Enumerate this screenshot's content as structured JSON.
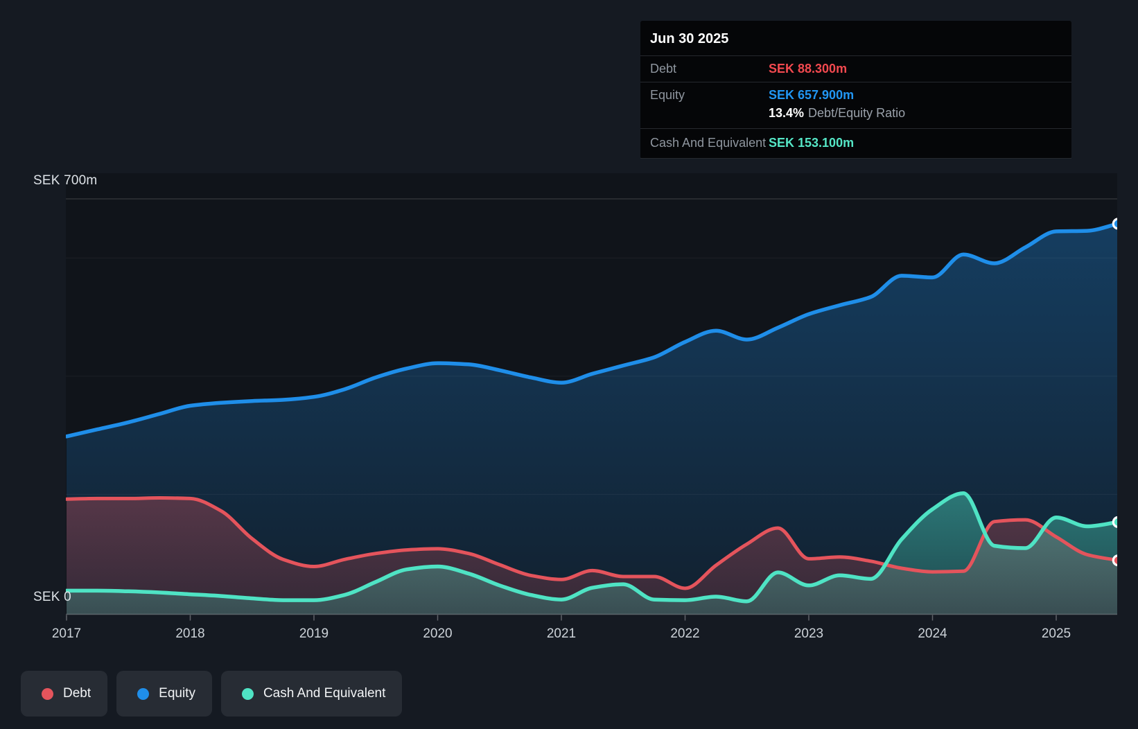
{
  "page": {
    "background": "#151a22"
  },
  "tooltip": {
    "date": "Jun 30 2025",
    "rows": [
      {
        "label": "Debt",
        "value": "SEK 88.300m",
        "color": "#f2494f"
      },
      {
        "label": "Equity",
        "value": "SEK 657.900m",
        "color": "#2196f3"
      },
      {
        "label": "Cash And Equivalent",
        "value": "SEK 153.100m",
        "color": "#55e6c6"
      }
    ],
    "ratio_value": "13.4%",
    "ratio_label": "Debt/Equity Ratio"
  },
  "legend": {
    "position": "bottom-left",
    "items": [
      {
        "label": "Debt",
        "color": "#e4545c"
      },
      {
        "label": "Equity",
        "color": "#1f8ee9"
      },
      {
        "label": "Cash And Equivalent",
        "color": "#4fe3c4"
      }
    ]
  },
  "chart_data": {
    "type": "area",
    "title": "",
    "xlabel": "",
    "ylabel": "SEK (millions)",
    "currency": "SEK",
    "x_range": [
      2017,
      2025.5
    ],
    "ylim": [
      0,
      700
    ],
    "grid": "horizontal",
    "legend_position": "bottom",
    "y_axis": {
      "top_label": "SEK 700m",
      "bottom_label": "SEK 0",
      "max_m": 700,
      "min_m": 0,
      "gridlines": [
        {
          "value": 200,
          "major": false
        },
        {
          "value": 400,
          "major": false
        },
        {
          "value": 600,
          "major": false
        },
        {
          "value": 700,
          "major": true
        }
      ]
    },
    "x_ticks": [
      2017,
      2018,
      2019,
      2020,
      2021,
      2022,
      2023,
      2024,
      2025
    ],
    "x": [
      2017,
      2017.25,
      2017.5,
      2017.75,
      2018,
      2018.25,
      2018.5,
      2018.75,
      2019,
      2019.25,
      2019.5,
      2019.75,
      2020,
      2020.25,
      2020.5,
      2020.75,
      2021,
      2021.25,
      2021.5,
      2021.75,
      2022,
      2022.25,
      2022.5,
      2022.75,
      2023,
      2023.25,
      2023.5,
      2023.75,
      2024,
      2024.25,
      2024.5,
      2024.75,
      2025,
      2025.25,
      2025.5
    ],
    "series": [
      {
        "name": "Debt",
        "color": "#e4545c",
        "values": [
          192,
          193,
          193,
          194,
          193,
          172,
          125,
          90,
          78,
          90,
          100,
          106,
          108,
          100,
          81,
          63,
          56,
          71,
          61,
          61,
          41,
          80,
          116,
          143,
          91,
          94,
          87,
          75,
          69,
          70,
          154,
          157,
          128,
          98,
          88.3
        ]
      },
      {
        "name": "Equity",
        "color": "#1f8ee9",
        "values": [
          298,
          310,
          322,
          336,
          350,
          355,
          358,
          360,
          365,
          378,
          398,
          413,
          422,
          420,
          410,
          398,
          389,
          404,
          418,
          432,
          458,
          477,
          462,
          482,
          505,
          520,
          534,
          570,
          567,
          606,
          591,
          618,
          645,
          646,
          657.9
        ]
      },
      {
        "name": "Cash And Equivalent",
        "color": "#4fe3c4",
        "values": [
          37,
          37,
          36,
          34,
          31,
          28,
          24,
          21,
          21,
          30,
          52,
          73,
          78,
          66,
          46,
          30,
          22,
          42,
          48,
          22,
          21,
          27,
          19,
          68,
          46,
          63,
          57,
          124,
          175,
          202,
          113,
          109,
          161,
          146,
          153.1
        ]
      }
    ],
    "last_point_date": "Jun 30 2025"
  }
}
